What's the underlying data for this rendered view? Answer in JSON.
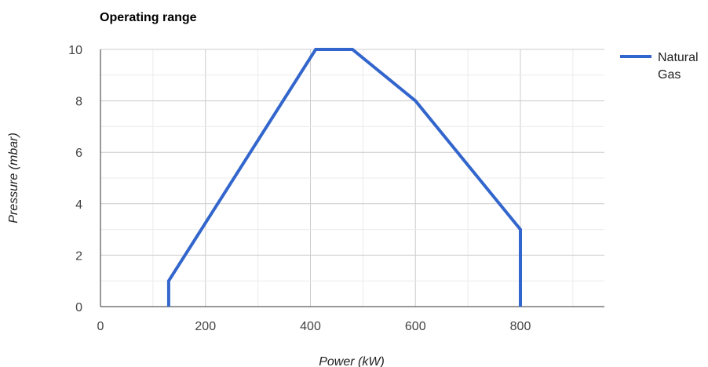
{
  "chart_data": {
    "type": "line",
    "title": "Operating range",
    "xlabel": "Power (kW)",
    "ylabel": "Pressure (mbar)",
    "xlim": [
      0,
      960
    ],
    "ylim": [
      0,
      10
    ],
    "x_ticks": [
      0,
      200,
      400,
      600,
      800
    ],
    "y_ticks": [
      0,
      2,
      4,
      6,
      8,
      10
    ],
    "x_minor_step": 100,
    "y_minor_step": 1,
    "grid": true,
    "legend_position": "right",
    "series": [
      {
        "name": "Natural Gas",
        "legend_lines": [
          "Natural",
          "Gas"
        ],
        "color": "#3366cc",
        "x": [
          130,
          130,
          410,
          480,
          600,
          800,
          800
        ],
        "y": [
          0,
          1,
          10,
          10,
          8,
          3,
          0
        ]
      }
    ]
  }
}
